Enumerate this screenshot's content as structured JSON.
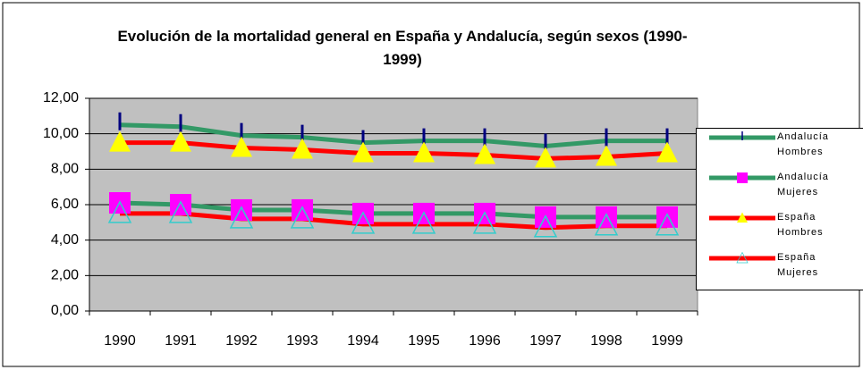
{
  "chart_data": {
    "type": "line",
    "title": "Evolución de la mortalidad general en España y Andalucía, según sexos (1990-1999)",
    "categories": [
      "1990",
      "1991",
      "1992",
      "1993",
      "1994",
      "1995",
      "1996",
      "1997",
      "1998",
      "1999"
    ],
    "series": [
      {
        "name": "Andalucía Hombres",
        "color": "#339966",
        "marker": "dash",
        "marker_color": "#000080",
        "values": [
          10.5,
          10.4,
          9.9,
          9.8,
          9.5,
          9.6,
          9.6,
          9.3,
          9.6,
          9.6
        ]
      },
      {
        "name": "Andalucía Mujeres",
        "color": "#339966",
        "marker": "square",
        "marker_color": "#ff00ff",
        "values": [
          6.1,
          6.0,
          5.7,
          5.7,
          5.5,
          5.5,
          5.5,
          5.3,
          5.3,
          5.3
        ]
      },
      {
        "name": "España Hombres",
        "color": "#ff0000",
        "marker": "triangle",
        "marker_color": "#ffff00",
        "values": [
          9.5,
          9.5,
          9.2,
          9.1,
          8.9,
          8.9,
          8.8,
          8.6,
          8.7,
          8.9
        ]
      },
      {
        "name": "España Mujeres",
        "color": "#ff0000",
        "marker": "triangle-open",
        "marker_color": "#33cccc",
        "values": [
          5.5,
          5.5,
          5.2,
          5.2,
          4.9,
          4.9,
          4.9,
          4.7,
          4.8,
          4.8
        ]
      }
    ],
    "ylim": [
      0,
      12
    ],
    "yticks": [
      {
        "value": 0,
        "label": "0,00"
      },
      {
        "value": 2,
        "label": "2,00"
      },
      {
        "value": 4,
        "label": "4,00"
      },
      {
        "value": 6,
        "label": "6,00"
      },
      {
        "value": 8,
        "label": "8,00"
      },
      {
        "value": 10,
        "label": "10,00"
      },
      {
        "value": 12,
        "label": "12,00"
      }
    ],
    "grid": true,
    "plot_color": "#c0c0c0",
    "legend": "right"
  }
}
